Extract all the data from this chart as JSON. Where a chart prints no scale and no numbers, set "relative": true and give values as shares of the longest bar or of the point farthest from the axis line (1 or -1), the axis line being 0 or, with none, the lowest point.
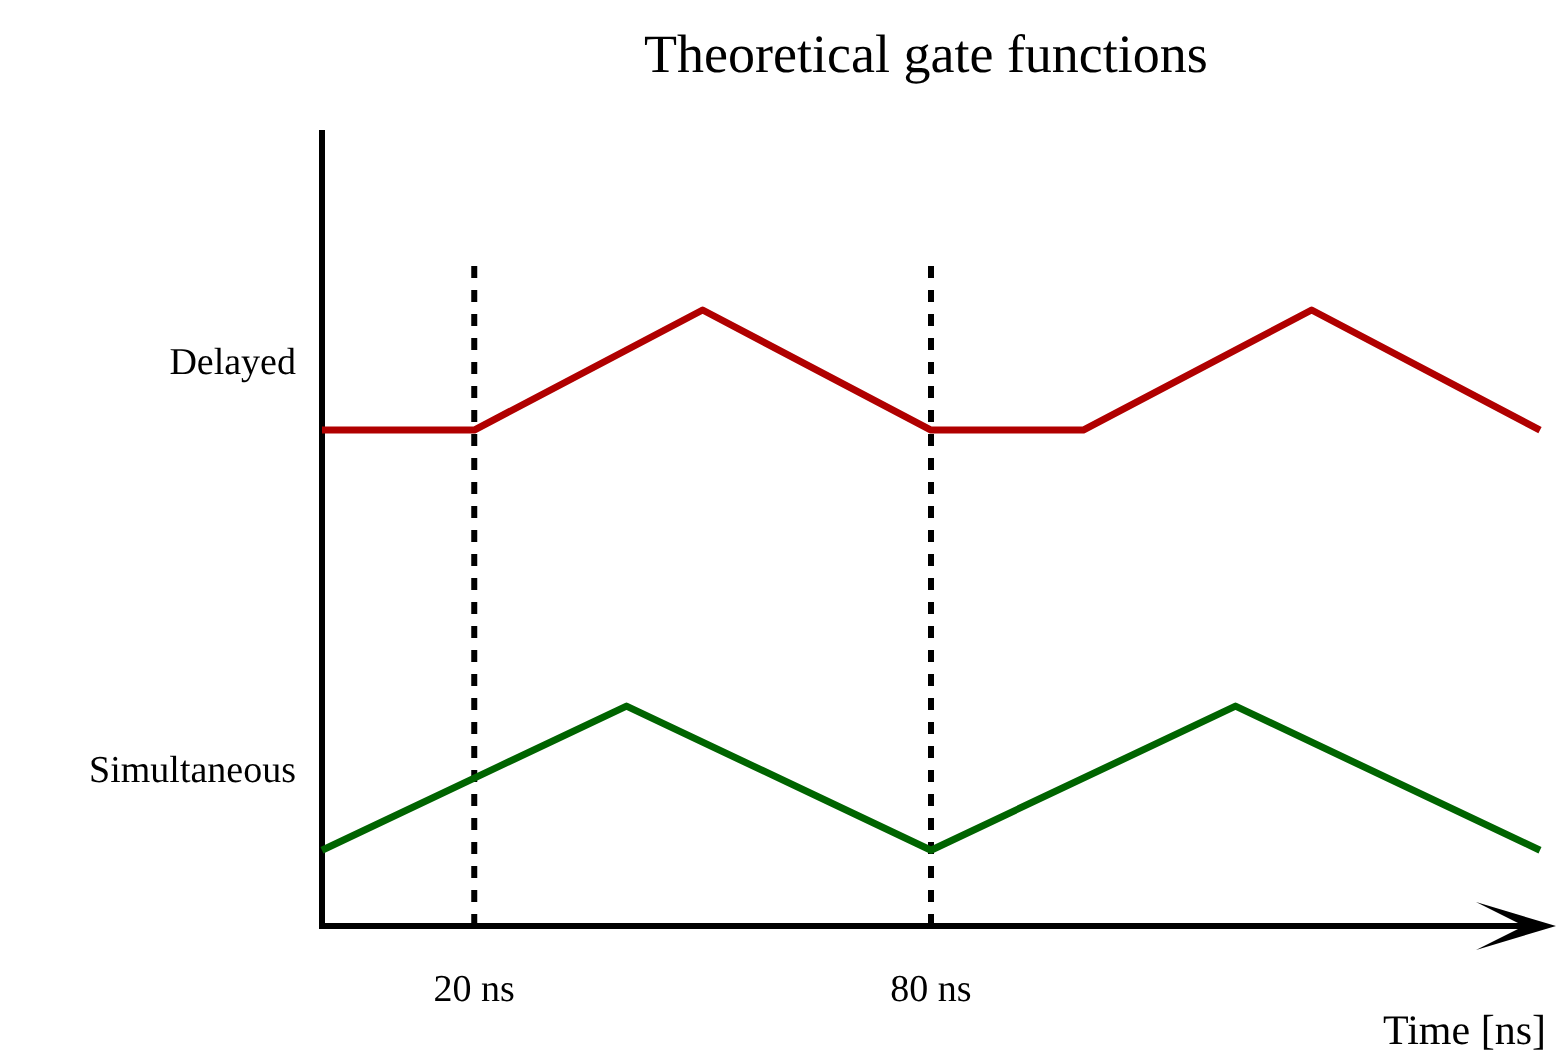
{
  "chart_data": {
    "type": "line",
    "title": "Theoretical gate functions",
    "xlabel": "Time [ns]",
    "relative": true,
    "xlim": [
      0,
      160
    ],
    "xticks": [
      {
        "value": 20,
        "label": "20 ns"
      },
      {
        "value": 80,
        "label": "80 ns"
      }
    ],
    "series": [
      {
        "name": "Delayed",
        "color": "#b00000",
        "x": [
          0,
          20,
          50,
          80,
          100,
          130,
          160
        ],
        "values": [
          0.805,
          0.805,
          1,
          0.805,
          0.805,
          1,
          0.805
        ]
      },
      {
        "name": "Simultaneous",
        "color": "#006400",
        "x": [
          0,
          40,
          80,
          120,
          160
        ],
        "values": [
          0.123,
          0.357,
          0.123,
          0.357,
          0.123
        ]
      }
    ],
    "ref_lines": [
      {
        "axis": "x",
        "value": 20,
        "color": "#000000",
        "line_style": "dashed"
      },
      {
        "axis": "x",
        "value": 80,
        "color": "#000000",
        "line_style": "dashed"
      }
    ],
    "legend": false,
    "grid": false
  }
}
